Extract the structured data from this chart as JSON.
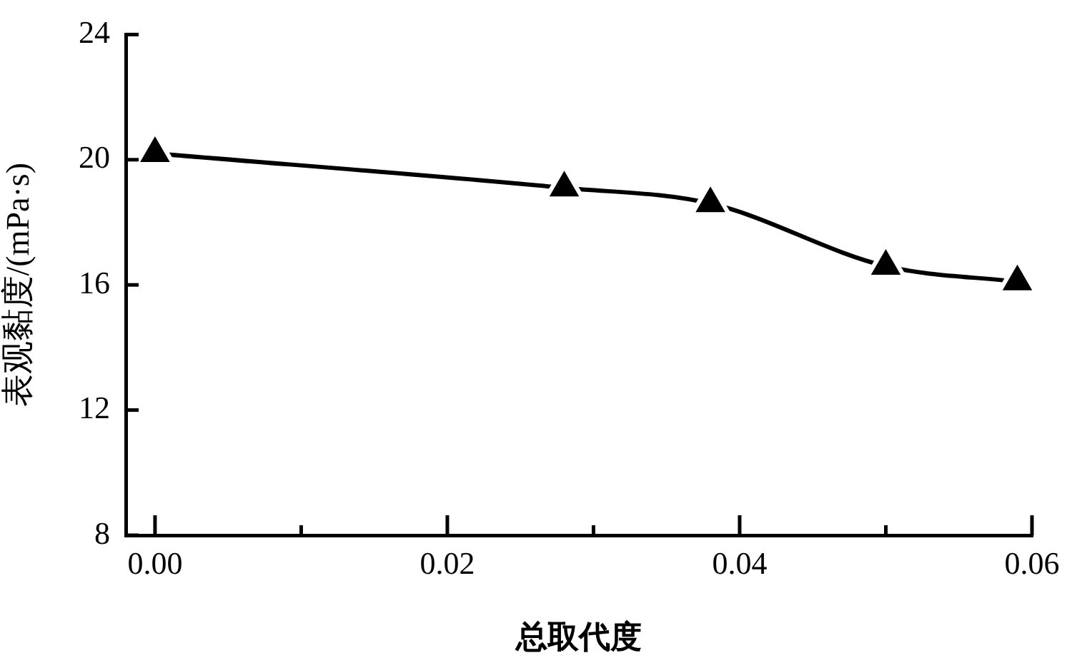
{
  "chart_data": {
    "type": "line",
    "xlabel": "总取代度",
    "ylabel": "表观黏度/(mPa·s)",
    "x": [
      0,
      0.028,
      0.038,
      0.05,
      0.059
    ],
    "values": [
      20.2,
      19.1,
      18.6,
      16.6,
      16.1
    ],
    "color": "#000000",
    "marker": "triangle",
    "line_style": "solid",
    "xlim": [
      -0.002,
      0.06
    ],
    "xticks": [
      {
        "value": 0,
        "label": "0.00"
      },
      {
        "value": 0.01,
        "label": null
      },
      {
        "value": 0.02,
        "label": "0.02"
      },
      {
        "value": 0.03,
        "label": null
      },
      {
        "value": 0.04,
        "label": "0.04"
      },
      {
        "value": 0.05,
        "label": null
      },
      {
        "value": 0.06,
        "label": "0.06"
      }
    ],
    "ylim": [
      8,
      24
    ],
    "yticks": [
      8,
      12,
      16,
      20,
      24
    ]
  }
}
